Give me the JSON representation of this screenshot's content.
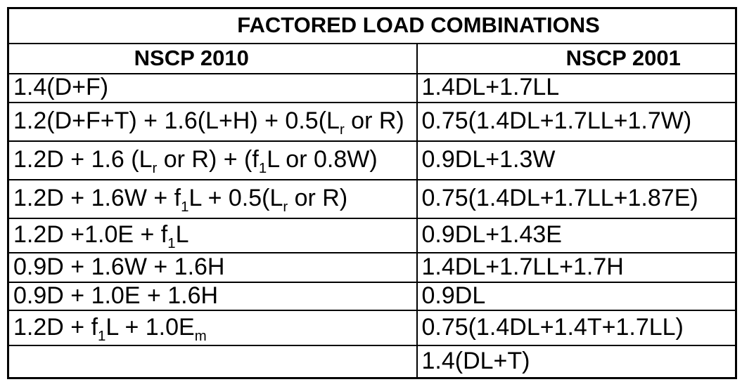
{
  "title": "FACTORED LOAD COMBINATIONS",
  "columns": [
    {
      "label": "NSCP 2010"
    },
    {
      "label": "NSCP 2001"
    }
  ],
  "rows": [
    {
      "left": [
        {
          "text": "1.4(D+F)"
        }
      ],
      "right": [
        {
          "text": "1.4DL+1.7LL"
        }
      ]
    },
    {
      "left": [
        {
          "text": "1.2(D+F+T) + 1.6(L+H) + 0.5(L"
        },
        {
          "text": "r",
          "sub": true
        },
        {
          "text": " or R)"
        }
      ],
      "right": [
        {
          "text": "0.75(1.4DL+1.7LL+1.7W)"
        }
      ]
    },
    {
      "left": [
        {
          "text": "1.2D + 1.6 (L"
        },
        {
          "text": "r",
          "sub": true
        },
        {
          "text": " or R) + (f"
        },
        {
          "text": "1",
          "sub": true
        },
        {
          "text": "L or 0.8W)"
        }
      ],
      "right": [
        {
          "text": "0.9DL+1.3W"
        }
      ]
    },
    {
      "left": [
        {
          "text": "1.2D + 1.6W + f"
        },
        {
          "text": "1",
          "sub": true
        },
        {
          "text": "L + 0.5(L"
        },
        {
          "text": "r",
          "sub": true
        },
        {
          "text": " or R)"
        }
      ],
      "right": [
        {
          "text": "0.75(1.4DL+1.7LL+1.87E)"
        }
      ]
    },
    {
      "left": [
        {
          "text": "1.2D +1.0E + f"
        },
        {
          "text": "1",
          "sub": true
        },
        {
          "text": "L"
        }
      ],
      "right": [
        {
          "text": "0.9DL+1.43E"
        }
      ]
    },
    {
      "left": [
        {
          "text": "0.9D + 1.6W + 1.6H"
        }
      ],
      "right": [
        {
          "text": "1.4DL+1.7LL+1.7H"
        }
      ]
    },
    {
      "left": [
        {
          "text": "0.9D + 1.0E + 1.6H"
        }
      ],
      "right": [
        {
          "text": "0.9DL"
        }
      ]
    },
    {
      "left": [
        {
          "text": "1.2D + f"
        },
        {
          "text": "1",
          "sub": true
        },
        {
          "text": "L + 1.0E"
        },
        {
          "text": "m",
          "sub": true
        }
      ],
      "right": [
        {
          "text": "0.75(1.4DL+1.4T+1.7LL)"
        }
      ]
    },
    {
      "left": [],
      "right": [
        {
          "text": "1.4(DL+T)"
        }
      ]
    }
  ],
  "colors": {
    "border": "#000000",
    "background": "#ffffff",
    "text": "#000000"
  }
}
